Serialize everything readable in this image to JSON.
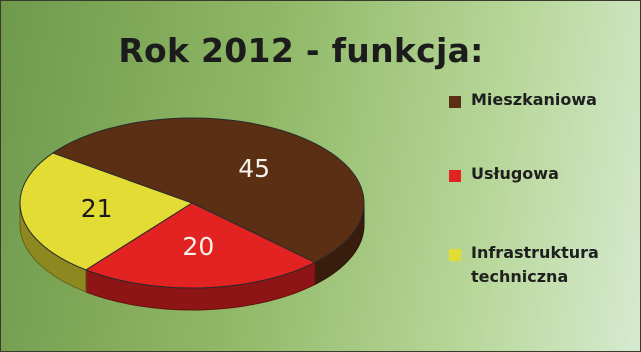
{
  "chart_data": {
    "type": "pie",
    "title": "Rok 2012 - funkcja:",
    "slices": [
      {
        "label": "Mieszkaniowa",
        "value": 45,
        "color": "#5a2f14"
      },
      {
        "label": "Usługowa",
        "value": 20,
        "color": "#e32222"
      },
      {
        "label": "Infrastruktura techniczna",
        "value": 21,
        "color": "#e3dc34"
      }
    ],
    "legend_position": "right",
    "style": "3d"
  },
  "legend": [
    {
      "lines": [
        "Mieszkaniowa"
      ],
      "color": "#5a2f14"
    },
    {
      "lines": [
        "Usługowa"
      ],
      "color": "#e32222"
    },
    {
      "lines": [
        "Infrastruktura",
        "techniczna"
      ],
      "color": "#e3dc34"
    }
  ]
}
